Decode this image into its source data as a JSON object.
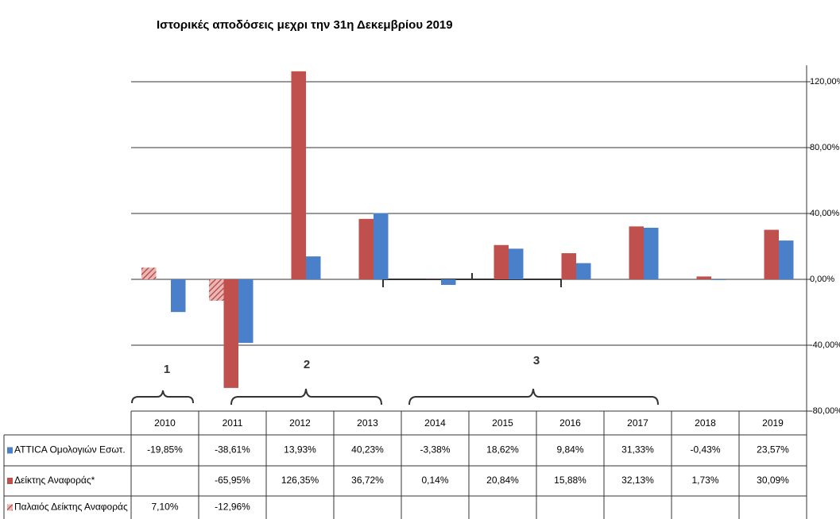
{
  "chart_data": {
    "type": "bar",
    "title": "Ιστορικές αποδόσεις μεχρι την 31η Δεκεμβρίου 2019",
    "categories": [
      "2010",
      "2011",
      "2012",
      "2013",
      "2014",
      "2015",
      "2016",
      "2017",
      "2018",
      "2019"
    ],
    "series": [
      {
        "name": "ATTICA Ομολογιών Εσωτ.",
        "color": "#4a7fc9",
        "hatch": false,
        "values": [
          -19.85,
          -38.61,
          13.93,
          40.23,
          -3.38,
          18.62,
          9.84,
          31.33,
          -0.43,
          23.57
        ],
        "value_labels": [
          "-19,85%",
          "-38,61%",
          "13,93%",
          "40,23%",
          "-3,38%",
          "18,62%",
          "9,84%",
          "31,33%",
          "-0,43%",
          "23,57%"
        ]
      },
      {
        "name": "Δείκτης Αναφοράς*",
        "color": "#c0504d",
        "hatch": false,
        "values": [
          null,
          -65.95,
          126.35,
          36.72,
          0.14,
          20.84,
          15.88,
          32.13,
          1.73,
          30.09
        ],
        "value_labels": [
          null,
          "-65,95%",
          "126,35%",
          "36,72%",
          "0,14%",
          "20,84%",
          "15,88%",
          "32,13%",
          "1,73%",
          "30,09%"
        ]
      },
      {
        "name": "Παλαιός Δείκτης Αναφοράς",
        "color": "#c0504d",
        "hatch": true,
        "values": [
          7.1,
          -12.96,
          null,
          null,
          null,
          null,
          null,
          null,
          null,
          null
        ],
        "value_labels": [
          "7,10%",
          "-12,96%",
          null,
          null,
          null,
          null,
          null,
          null,
          null,
          null
        ]
      }
    ],
    "ylim": [
      -80,
      130
    ],
    "yticks": [
      {
        "value": -80,
        "label": "-80,00%"
      },
      {
        "value": -40,
        "label": "-40,00%"
      },
      {
        "value": 0,
        "label": "0,00%"
      },
      {
        "value": 40,
        "label": "40,00%"
      },
      {
        "value": 80,
        "label": "80,00%"
      },
      {
        "value": 120,
        "label": "120,00%"
      }
    ],
    "grid": true,
    "annotations": [
      "1",
      "1",
      "2",
      "3"
    ]
  }
}
